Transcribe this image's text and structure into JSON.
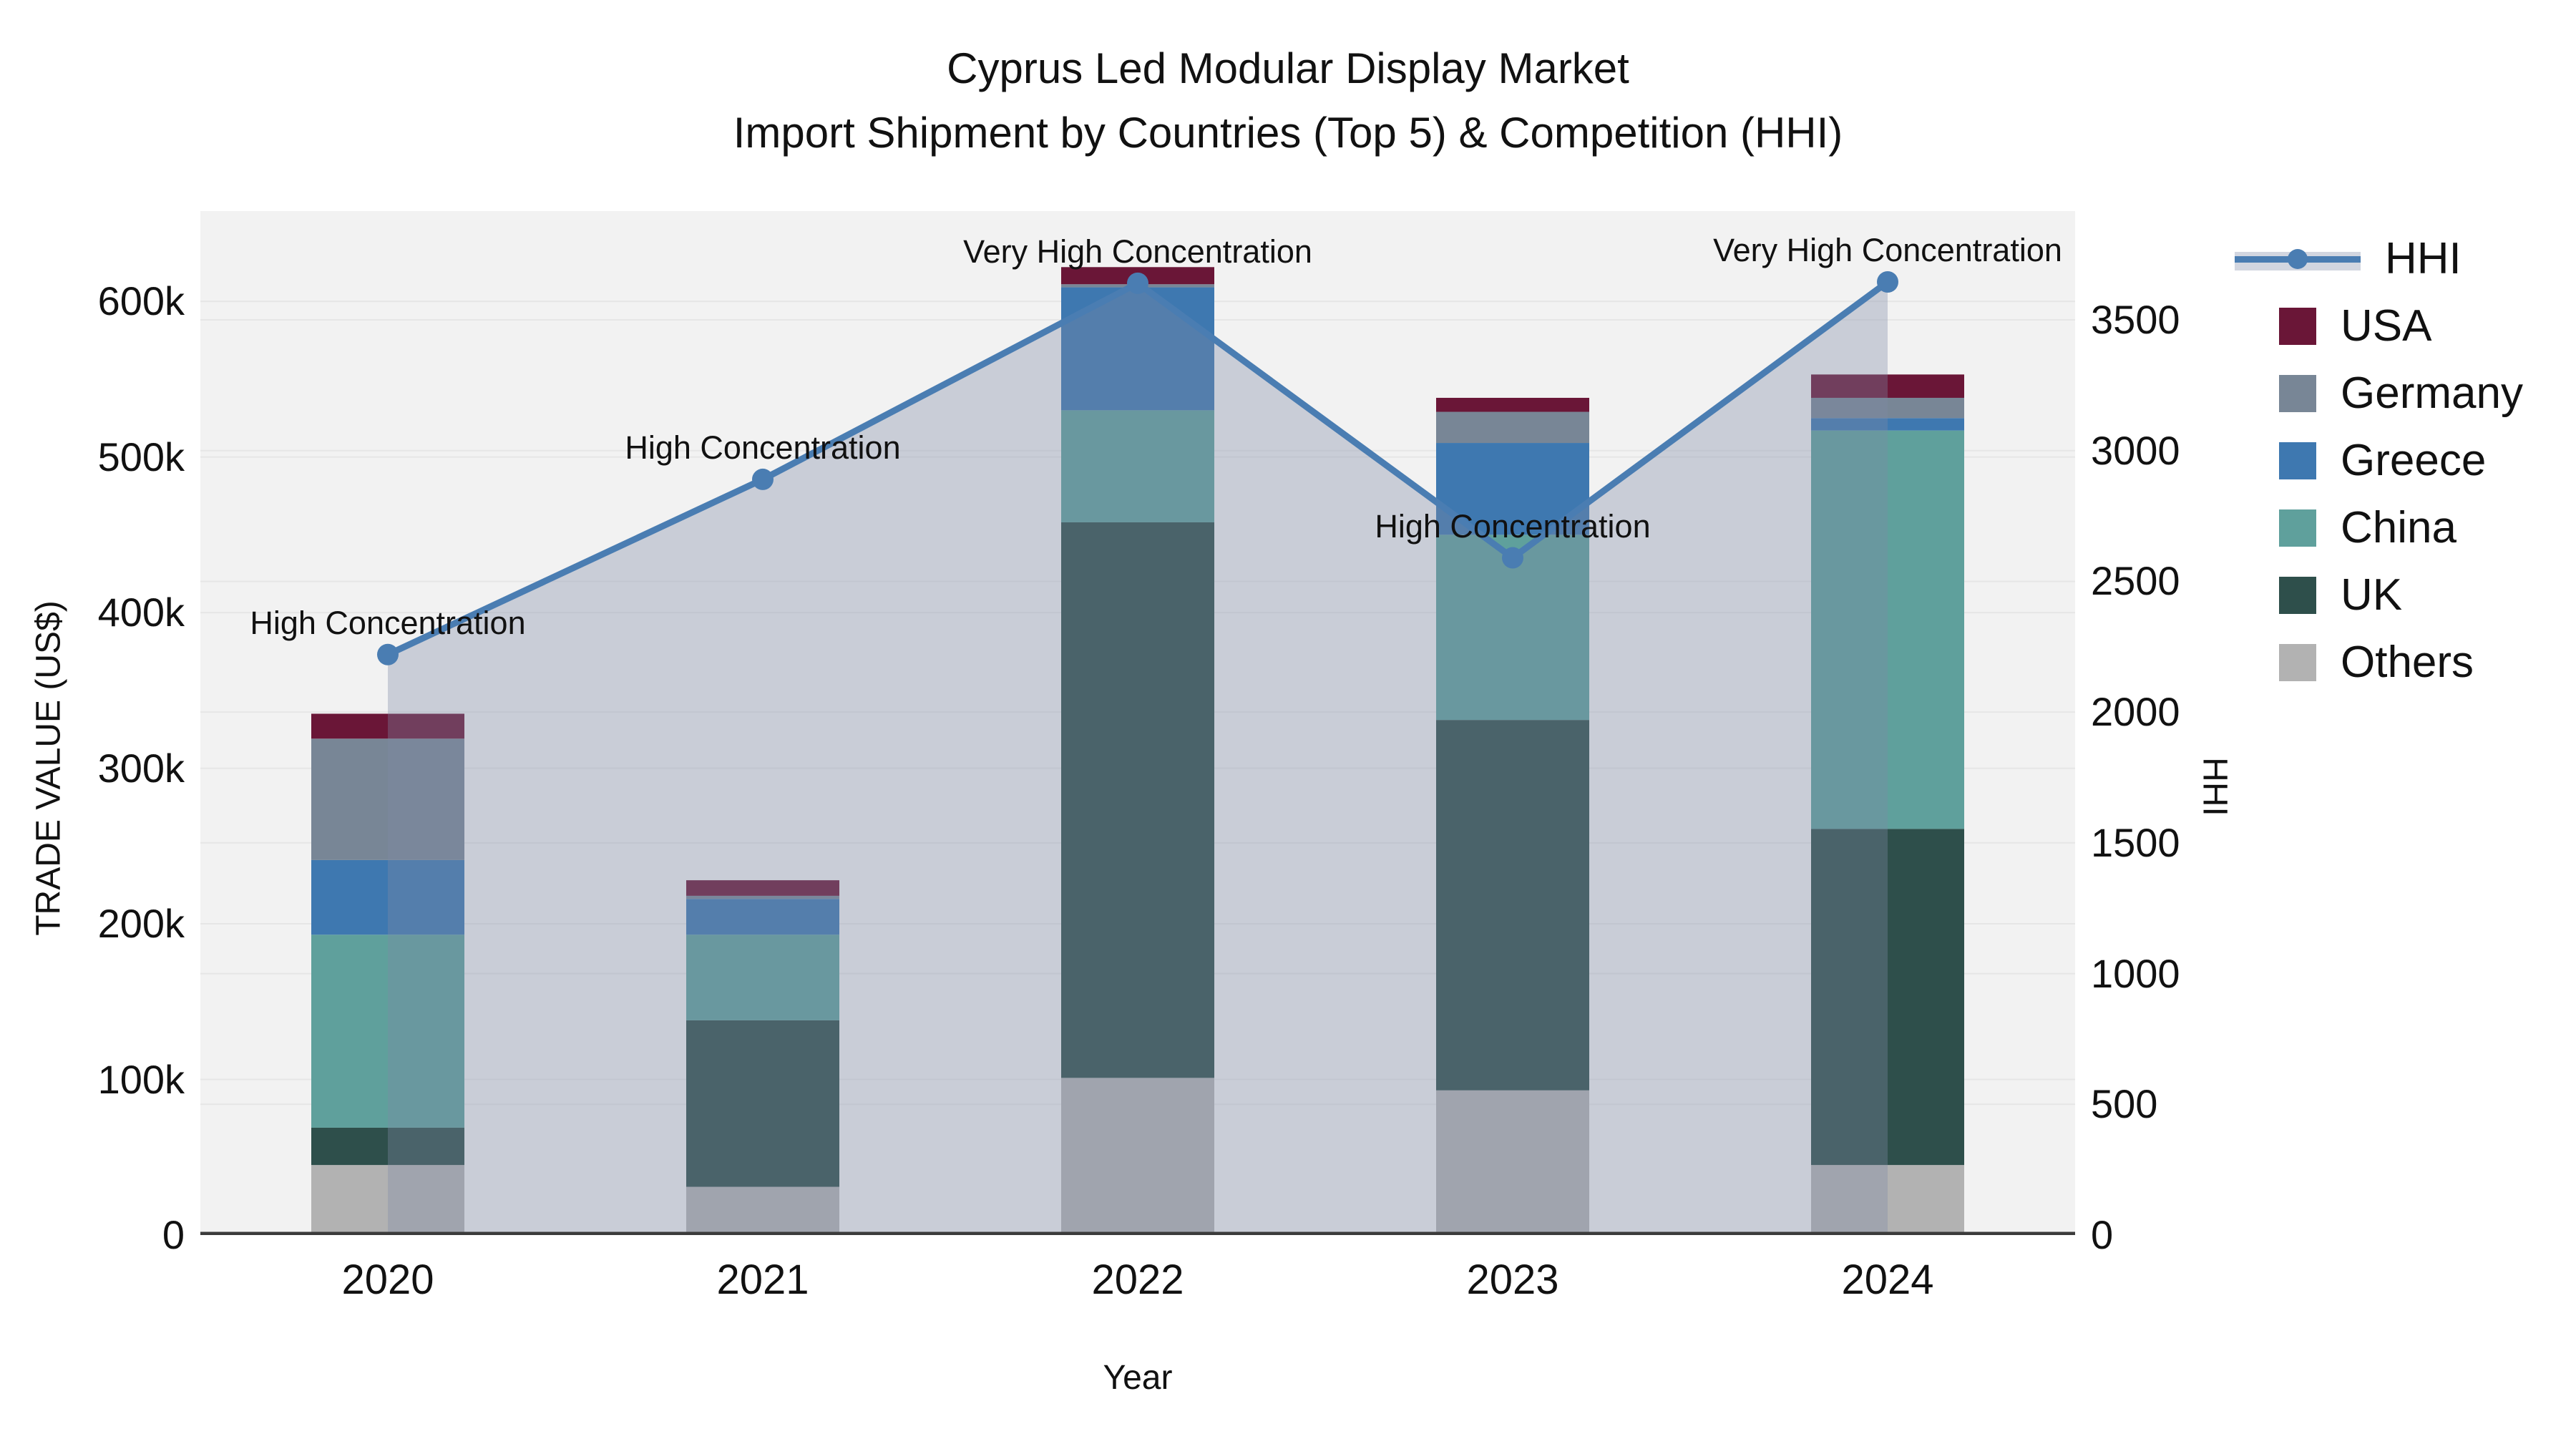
{
  "title": {
    "line1": "Cyprus Led Modular Display Market",
    "line2": "Import Shipment by Countries (Top 5) & Competition (HHI)"
  },
  "axes": {
    "xlabel": "Year",
    "ylabel": "TRADE VALUE (US$)",
    "y2label": "HHI",
    "yticks": [
      {
        "value": 0,
        "label": "0"
      },
      {
        "value": 100000,
        "label": "100k"
      },
      {
        "value": 200000,
        "label": "200k"
      },
      {
        "value": 300000,
        "label": "300k"
      },
      {
        "value": 400000,
        "label": "400k"
      },
      {
        "value": 500000,
        "label": "500k"
      },
      {
        "value": 600000,
        "label": "600k"
      }
    ],
    "y2ticks": [
      {
        "value": 0,
        "label": "0"
      },
      {
        "value": 500,
        "label": "500"
      },
      {
        "value": 1000,
        "label": "1000"
      },
      {
        "value": 1500,
        "label": "1500"
      },
      {
        "value": 2000,
        "label": "2000"
      },
      {
        "value": 2500,
        "label": "2500"
      },
      {
        "value": 3000,
        "label": "3000"
      },
      {
        "value": 3500,
        "label": "3500"
      }
    ],
    "xticks": [
      "2020",
      "2021",
      "2022",
      "2023",
      "2024"
    ]
  },
  "colors": {
    "plot_bg": "#f2f2f2",
    "grid": "#e6e6e6",
    "axis_line": "#3b3b3b",
    "hhi_line": "#4a7db2",
    "area_fill": "#7f8aa7",
    "area_fill_opacity": 0.35,
    "usa": "#6a1637",
    "germany": "#788696",
    "greece": "#3e78b0",
    "china": "#5fa09c",
    "uk": "#2e4f4b",
    "others": "#b2b2b2"
  },
  "legend": [
    {
      "label": "HHI",
      "type": "line",
      "color": "#4a7db2"
    },
    {
      "label": "USA",
      "type": "square",
      "color": "#6a1637"
    },
    {
      "label": "Germany",
      "type": "square",
      "color": "#788696"
    },
    {
      "label": "Greece",
      "type": "square",
      "color": "#3e78b0"
    },
    {
      "label": "China",
      "type": "square",
      "color": "#5fa09c"
    },
    {
      "label": "UK",
      "type": "square",
      "color": "#2e4f4b"
    },
    {
      "label": "Others",
      "type": "square",
      "color": "#b2b2b2"
    }
  ],
  "chart_data": {
    "type": "combo stacked-bar + line",
    "title": "Cyprus Led Modular Display Market — Import Shipment by Countries (Top 5) & Competition (HHI)",
    "xlabel": "Year",
    "ylabel": "TRADE VALUE (US$)",
    "y2label": "HHI",
    "categories": [
      "2020",
      "2021",
      "2022",
      "2023",
      "2024"
    ],
    "ylim": [
      0,
      658000
    ],
    "y2lim": [
      0,
      3916
    ],
    "grid": true,
    "legend_position": "right",
    "bar_series": [
      {
        "name": "Others",
        "color": "#b2b2b2",
        "values": [
          45000,
          31000,
          101000,
          93000,
          45000
        ]
      },
      {
        "name": "UK",
        "color": "#2e4f4b",
        "values": [
          24000,
          107000,
          357000,
          238000,
          216000
        ]
      },
      {
        "name": "China",
        "color": "#5fa09c",
        "values": [
          124000,
          55000,
          72000,
          119000,
          256000
        ]
      },
      {
        "name": "Greece",
        "color": "#3e78b0",
        "values": [
          48000,
          23000,
          79000,
          59000,
          8000
        ]
      },
      {
        "name": "Germany",
        "color": "#788696",
        "values": [
          78000,
          2000,
          2000,
          20000,
          13000
        ]
      },
      {
        "name": "USA",
        "color": "#6a1637",
        "values": [
          16000,
          10000,
          11000,
          9000,
          15000
        ]
      }
    ],
    "bar_totals": [
      335000,
      228000,
      622000,
      538000,
      553000
    ],
    "line_series": {
      "name": "HHI",
      "axis": "right",
      "color": "#4a7db2",
      "values": [
        2220,
        2890,
        3640,
        2590,
        3645
      ]
    },
    "annotations": [
      {
        "index": 0,
        "label": "High Concentration"
      },
      {
        "index": 1,
        "label": "High Concentration"
      },
      {
        "index": 2,
        "label": "Very High Concentration"
      },
      {
        "index": 3,
        "label": "High Concentration"
      },
      {
        "index": 4,
        "label": "Very High Concentration"
      }
    ]
  }
}
